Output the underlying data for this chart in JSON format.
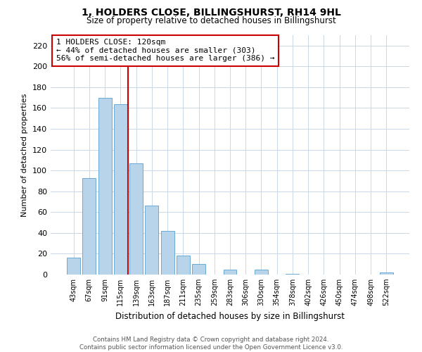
{
  "title": "1, HOLDERS CLOSE, BILLINGSHURST, RH14 9HL",
  "subtitle": "Size of property relative to detached houses in Billingshurst",
  "xlabel": "Distribution of detached houses by size in Billingshurst",
  "ylabel": "Number of detached properties",
  "bar_labels": [
    "43sqm",
    "67sqm",
    "91sqm",
    "115sqm",
    "139sqm",
    "163sqm",
    "187sqm",
    "211sqm",
    "235sqm",
    "259sqm",
    "283sqm",
    "306sqm",
    "330sqm",
    "354sqm",
    "378sqm",
    "402sqm",
    "426sqm",
    "450sqm",
    "474sqm",
    "498sqm",
    "522sqm"
  ],
  "bar_values": [
    16,
    93,
    170,
    164,
    107,
    66,
    42,
    18,
    10,
    0,
    5,
    0,
    5,
    0,
    1,
    0,
    0,
    0,
    0,
    0,
    2
  ],
  "bar_color": "#b8d4ea",
  "bar_edge_color": "#6aaad4",
  "vline_x": 3.5,
  "vline_color": "#cc0000",
  "annotation_line1": "1 HOLDERS CLOSE: 120sqm",
  "annotation_line2": "← 44% of detached houses are smaller (303)",
  "annotation_line3": "56% of semi-detached houses are larger (386) →",
  "annotation_box_color": "#cc0000",
  "ylim": [
    0,
    230
  ],
  "yticks": [
    0,
    20,
    40,
    60,
    80,
    100,
    120,
    140,
    160,
    180,
    200,
    220
  ],
  "footer_text": "Contains HM Land Registry data © Crown copyright and database right 2024.\nContains public sector information licensed under the Open Government Licence v3.0.",
  "background_color": "#ffffff",
  "grid_color": "#c8d8e8"
}
